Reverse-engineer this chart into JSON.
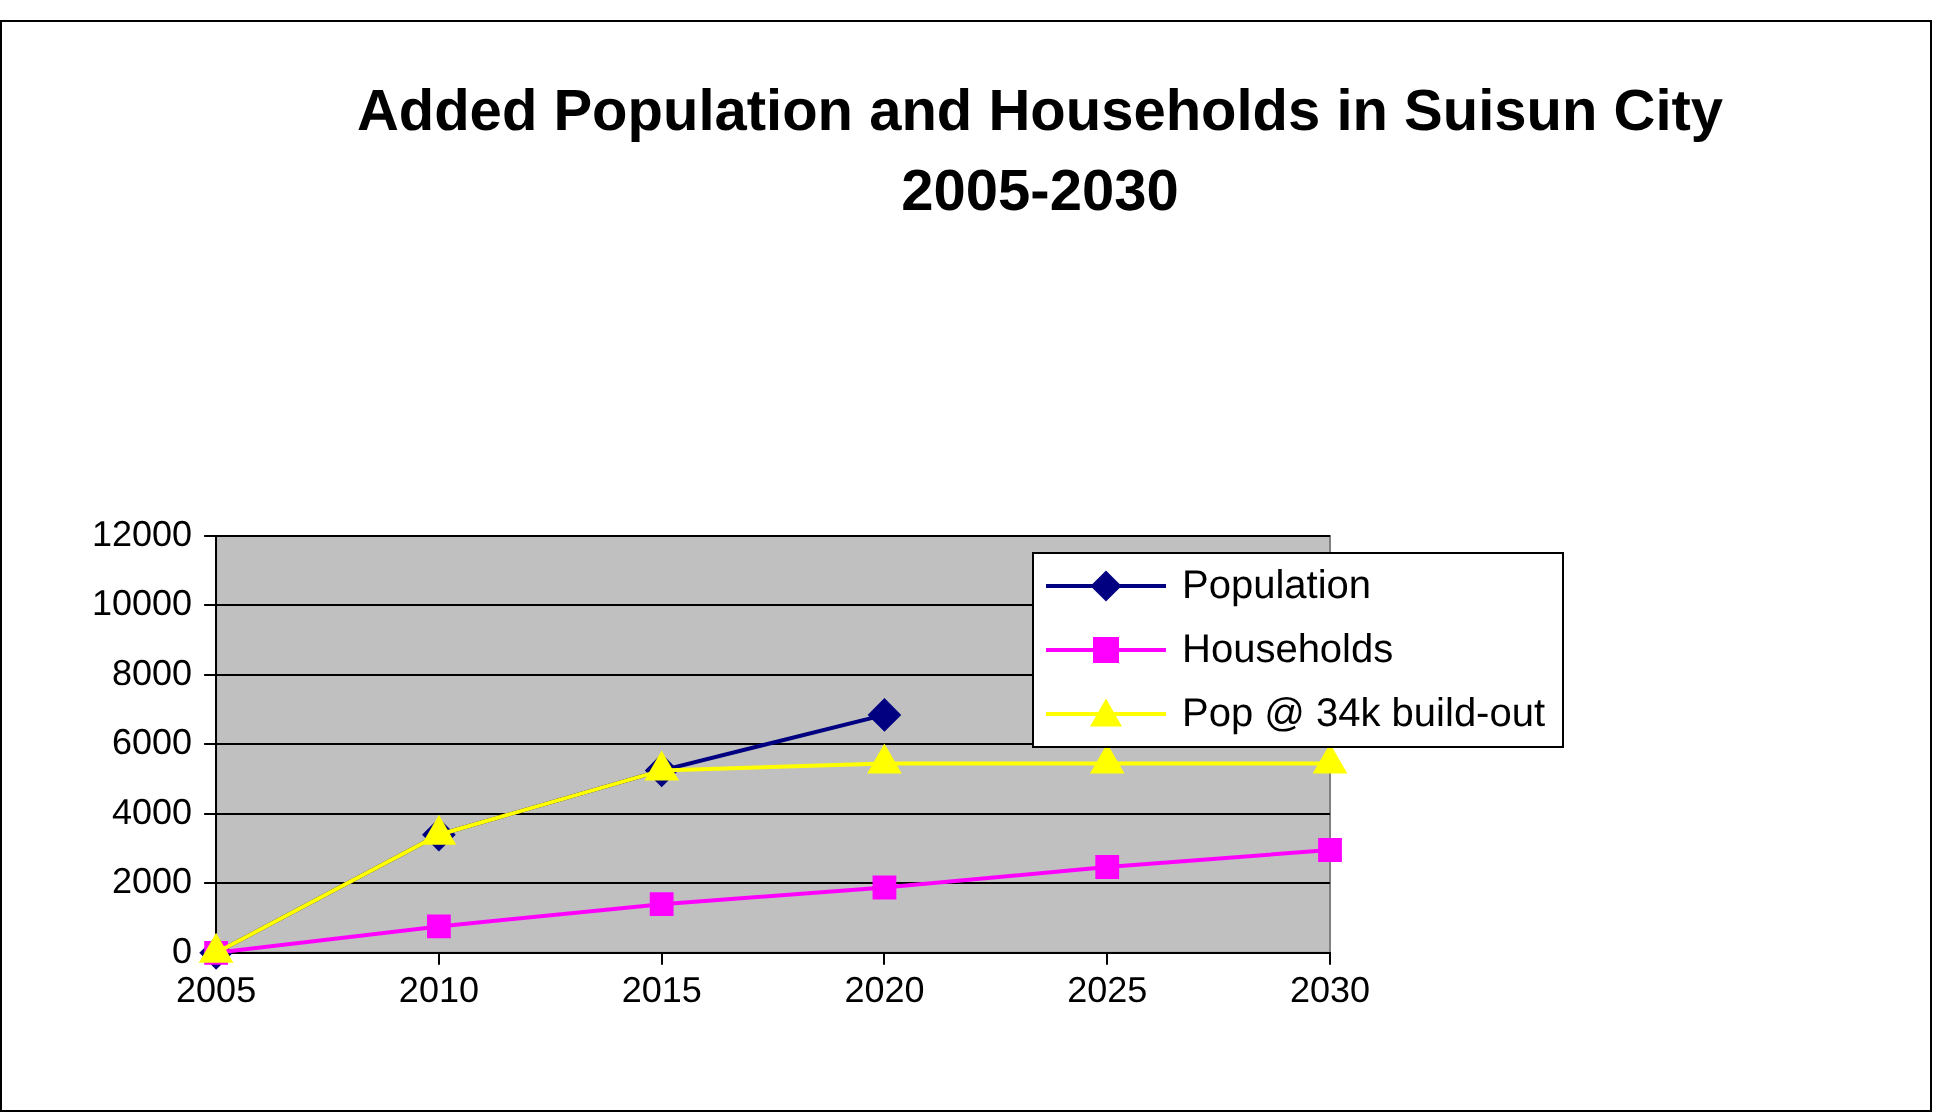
{
  "chart_data": {
    "type": "line",
    "title": "Added Population and Households in Suisun City\n2005-2030",
    "x": [
      2005,
      2010,
      2015,
      2020,
      2025,
      2030
    ],
    "xlim": [
      2005,
      2030
    ],
    "xticks": [
      2005,
      2010,
      2015,
      2020,
      2025,
      2030
    ],
    "ylim": [
      0,
      12000
    ],
    "yticks": [
      0,
      2000,
      4000,
      6000,
      8000,
      10000,
      12000
    ],
    "grid": "y",
    "legend": "top right",
    "series": [
      {
        "name": "Population",
        "color": "#000080",
        "marker": "diamond",
        "values": [
          0,
          3400,
          5250,
          6850,
          null,
          null
        ]
      },
      {
        "name": "Households",
        "color": "#ff00ff",
        "marker": "square",
        "values": [
          0,
          760,
          1400,
          1880,
          2470,
          2960
        ]
      },
      {
        "name": "Pop @ 34k build-out",
        "color": "#ffff00",
        "marker": "triangle",
        "values": [
          0,
          3400,
          5250,
          5450,
          5450,
          5450
        ]
      }
    ]
  }
}
